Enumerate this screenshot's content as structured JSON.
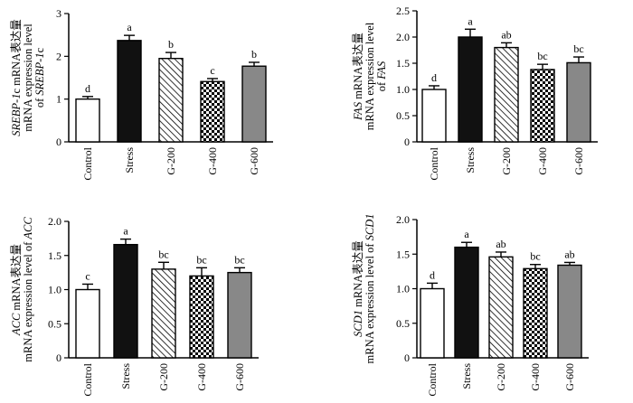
{
  "chart_data": [
    {
      "type": "bar",
      "categories": [
        "Control",
        "Stress",
        "G-200",
        "G-400",
        "G-600"
      ],
      "values": [
        1.0,
        2.37,
        1.95,
        1.41,
        1.77
      ],
      "errors": [
        0.06,
        0.12,
        0.14,
        0.07,
        0.09
      ],
      "letters": [
        "d",
        "a",
        "b",
        "c",
        "b"
      ],
      "ylim": [
        0,
        3
      ],
      "yticks": [
        "0",
        "1",
        "2",
        "3"
      ],
      "ylabel_lines": [
        [
          {
            "t": "SREBP-1",
            "i": true
          },
          {
            "t": "c mRNA表达量",
            "i": false
          }
        ],
        [
          {
            "t": "mRNA expression level",
            "i": false
          }
        ],
        [
          {
            "t": "of ",
            "i": false
          },
          {
            "t": "SREBP-1",
            "i": true
          },
          {
            "t": "c",
            "i": false
          }
        ]
      ]
    },
    {
      "type": "bar",
      "categories": [
        "Control",
        "Stress",
        "G-200",
        "G-400",
        "G-600"
      ],
      "values": [
        1.0,
        2.0,
        1.8,
        1.38,
        1.51
      ],
      "errors": [
        0.07,
        0.15,
        0.09,
        0.1,
        0.11
      ],
      "letters": [
        "d",
        "a",
        "ab",
        "bc",
        "bc"
      ],
      "ylim": [
        0,
        2.5
      ],
      "yticks": [
        "0",
        "0.5",
        "1.0",
        "1.5",
        "2.0",
        "2.5"
      ],
      "ylabel_lines": [
        [
          {
            "t": "FAS",
            "i": true
          },
          {
            "t": " mRNA表达量",
            "i": false
          }
        ],
        [
          {
            "t": "mRNA expression level",
            "i": false
          }
        ],
        [
          {
            "t": "of ",
            "i": false
          },
          {
            "t": "FAS",
            "i": true
          }
        ]
      ]
    },
    {
      "type": "bar",
      "categories": [
        "Control",
        "Stress",
        "G-200",
        "G-400",
        "G-600"
      ],
      "values": [
        1.0,
        1.66,
        1.3,
        1.2,
        1.25
      ],
      "errors": [
        0.08,
        0.08,
        0.1,
        0.12,
        0.07
      ],
      "letters": [
        "c",
        "a",
        "bc",
        "bc",
        "bc"
      ],
      "ylim": [
        0,
        2
      ],
      "yticks": [
        "0",
        "0.5",
        "1.0",
        "1.5",
        "2.0"
      ],
      "ylabel_lines": [
        [
          {
            "t": "ACC",
            "i": true
          },
          {
            "t": " mRNA表达量",
            "i": false
          }
        ],
        [
          {
            "t": "mRNA expression level of ",
            "i": false
          },
          {
            "t": "ACC",
            "i": true
          }
        ]
      ]
    },
    {
      "type": "bar",
      "categories": [
        "Control",
        "Stress",
        "G-200",
        "G-400",
        "G-600"
      ],
      "values": [
        1.0,
        1.6,
        1.46,
        1.29,
        1.34
      ],
      "errors": [
        0.08,
        0.07,
        0.07,
        0.06,
        0.04
      ],
      "letters": [
        "d",
        "a",
        "ab",
        "bc",
        "ab"
      ],
      "ylim": [
        0,
        2
      ],
      "yticks": [
        "0",
        "0.5",
        "1.0",
        "1.5",
        "2.0"
      ],
      "ylabel_lines": [
        [
          {
            "t": "SCD1",
            "i": true
          },
          {
            "t": " mRNA表达量",
            "i": false
          }
        ],
        [
          {
            "t": "mRNA expression level of ",
            "i": false
          },
          {
            "t": "SCD1",
            "i": true
          }
        ]
      ]
    }
  ],
  "fills": [
    "#ffffff",
    "#111111",
    "hatch",
    "checker",
    "#888888"
  ]
}
